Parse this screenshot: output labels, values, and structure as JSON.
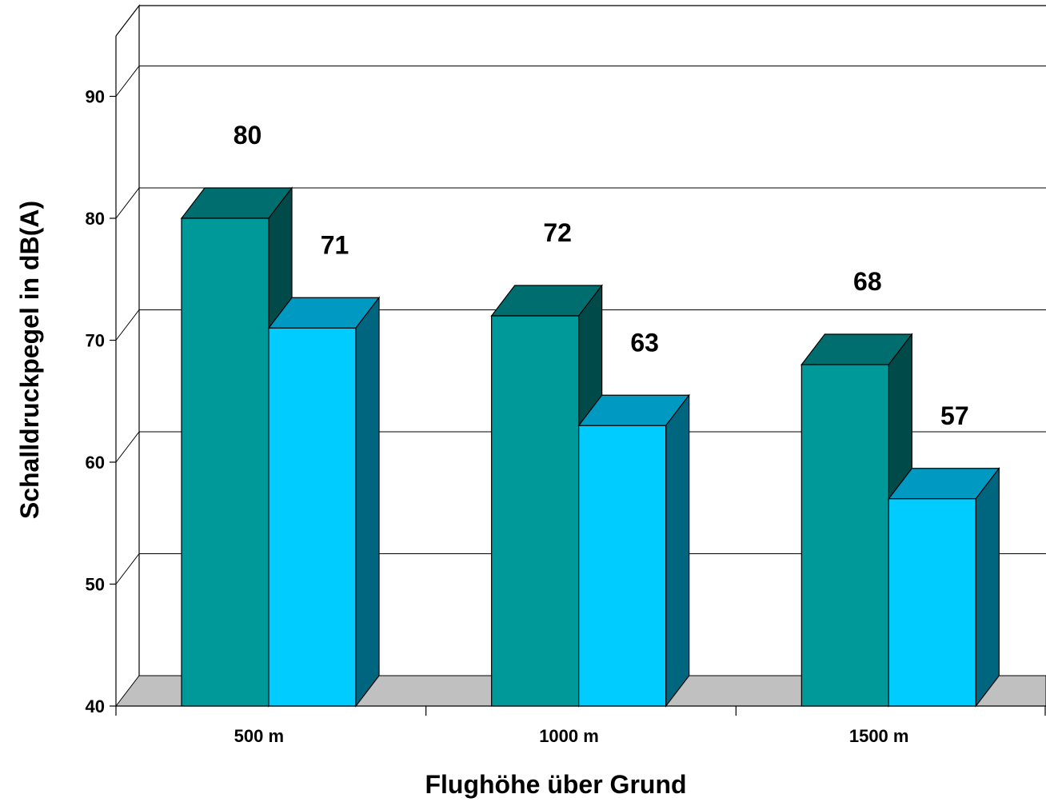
{
  "chart_data": {
    "type": "bar",
    "style": "3d-clustered",
    "xlabel": "Flughöhe über Grund",
    "ylabel": "Schalldruckpegel in dB(A)",
    "categories": [
      "500 m",
      "1000 m",
      "1500 m"
    ],
    "series": [
      {
        "values": [
          80,
          72,
          68
        ],
        "color_front": "#009999",
        "color_top": "#006e6e",
        "color_side": "#004a4a"
      },
      {
        "values": [
          71,
          63,
          57
        ],
        "color_front": "#00ccff",
        "color_top": "#0099c2",
        "color_side": "#006680"
      }
    ],
    "data_labels": [
      [
        "80",
        "72",
        "68"
      ],
      [
        "71",
        "63",
        "57"
      ]
    ],
    "ylim": [
      40,
      90
    ],
    "yticks": [
      40,
      50,
      60,
      70,
      80,
      90
    ],
    "grid": true,
    "legend": "none",
    "colors": {
      "floor": "#c0c0c0",
      "grid": "#000000",
      "background": "#ffffff"
    }
  }
}
